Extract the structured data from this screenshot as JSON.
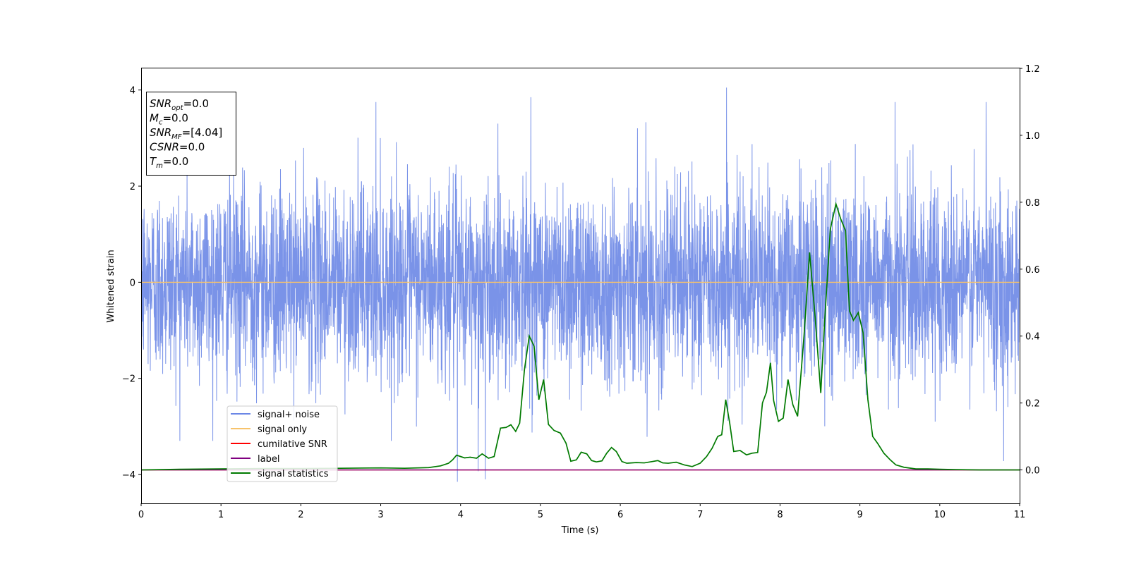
{
  "chart_data": {
    "type": "line",
    "title": "",
    "xlabel": "Time (s)",
    "ylabel": "Whitened strain",
    "ylabel_right": "",
    "xlim": [
      0,
      11
    ],
    "ylim": [
      -4.6,
      4.45
    ],
    "ylim_right": [
      -0.1,
      1.2
    ],
    "x_ticks": [
      "0",
      "1",
      "2",
      "3",
      "4",
      "5",
      "6",
      "7",
      "8",
      "9",
      "10",
      "11"
    ],
    "y_ticks": [
      "−4",
      "−2",
      "0",
      "2",
      "4"
    ],
    "y_ticks_right": [
      "0.0",
      "0.2",
      "0.4",
      "0.6",
      "0.8",
      "1.0",
      "1.2"
    ],
    "grid": false,
    "legend_position": "lower-left",
    "legend": [
      {
        "label": "signal+ noise",
        "color": "#6b87e6"
      },
      {
        "label": "signal only",
        "color": "#f7c36b"
      },
      {
        "label": "cumilative SNR",
        "color": "#ff0000"
      },
      {
        "label": "label",
        "color": "#800080"
      },
      {
        "label": "signal statistics",
        "color": "#007a00"
      }
    ],
    "info_box": [
      {
        "main": "SNR",
        "sub": "opt",
        "value": "=0.0"
      },
      {
        "main": "M",
        "sub": "c",
        "value": "=0.0"
      },
      {
        "main": "SNR",
        "sub": "MF",
        "value": "=[4.04]"
      },
      {
        "main": "CSNR",
        "sub": "",
        "value": "=0.0"
      },
      {
        "main": "T",
        "sub": "m",
        "value": "=0.0"
      }
    ],
    "series": [
      {
        "name": "signal+ noise",
        "axis": "left",
        "color": "#6b87e6",
        "description_type": "noise",
        "sample_rate": 400,
        "duration": 11,
        "std": 1.0,
        "peaks": [
          [
            4.88,
            3.85
          ],
          [
            7.33,
            4.05
          ],
          [
            2.94,
            3.75
          ],
          [
            6.32,
            3.33
          ],
          [
            3.96,
            -4.15
          ],
          [
            4.31,
            -4.1
          ],
          [
            4.22,
            -3.93
          ],
          [
            10.8,
            -3.72
          ],
          [
            9.44,
            3.75
          ],
          [
            10.58,
            3.75
          ]
        ]
      },
      {
        "name": "signal only",
        "axis": "left",
        "color": "#f7c36b",
        "x": [
          0,
          11
        ],
        "y": [
          0,
          0
        ]
      },
      {
        "name": "cumilative SNR",
        "axis": "right",
        "color": "#ff0000",
        "x": [
          0,
          11
        ],
        "y": [
          0,
          0
        ]
      },
      {
        "name": "label",
        "axis": "right",
        "color": "#800080",
        "x": [
          0,
          11
        ],
        "y": [
          0,
          0
        ]
      },
      {
        "name": "signal statistics",
        "axis": "right",
        "color": "#007a00",
        "x": [
          0,
          0.5,
          1.0,
          1.5,
          2.0,
          2.5,
          3.0,
          3.3,
          3.6,
          3.75,
          3.85,
          3.9,
          3.95,
          4.05,
          4.12,
          4.2,
          4.27,
          4.35,
          4.42,
          4.5,
          4.57,
          4.63,
          4.69,
          4.74,
          4.8,
          4.86,
          4.92,
          4.98,
          5.04,
          5.1,
          5.17,
          5.25,
          5.32,
          5.38,
          5.45,
          5.51,
          5.58,
          5.64,
          5.7,
          5.77,
          5.83,
          5.89,
          5.95,
          6.02,
          6.08,
          6.2,
          6.3,
          6.4,
          6.47,
          6.53,
          6.6,
          6.7,
          6.8,
          6.9,
          7.0,
          7.08,
          7.15,
          7.22,
          7.27,
          7.32,
          7.37,
          7.42,
          7.5,
          7.58,
          7.65,
          7.72,
          7.78,
          7.83,
          7.88,
          7.92,
          7.98,
          8.04,
          8.1,
          8.16,
          8.22,
          8.3,
          8.37,
          8.44,
          8.51,
          8.56,
          8.63,
          8.7,
          8.76,
          8.82,
          8.87,
          8.92,
          8.98,
          9.04,
          9.1,
          9.16,
          9.22,
          9.3,
          9.38,
          9.45,
          9.55,
          9.7,
          9.85,
          10.0,
          10.2,
          10.5,
          10.8,
          11.0
        ],
        "y": [
          0.0,
          0.002,
          0.003,
          0.004,
          0.004,
          0.005,
          0.006,
          0.005,
          0.007,
          0.012,
          0.02,
          0.03,
          0.044,
          0.036,
          0.038,
          0.035,
          0.048,
          0.035,
          0.04,
          0.125,
          0.127,
          0.135,
          0.115,
          0.14,
          0.3,
          0.4,
          0.37,
          0.21,
          0.27,
          0.136,
          0.118,
          0.11,
          0.08,
          0.026,
          0.03,
          0.053,
          0.048,
          0.028,
          0.024,
          0.027,
          0.05,
          0.067,
          0.055,
          0.025,
          0.02,
          0.022,
          0.021,
          0.025,
          0.028,
          0.021,
          0.02,
          0.023,
          0.015,
          0.01,
          0.02,
          0.04,
          0.065,
          0.1,
          0.105,
          0.21,
          0.14,
          0.055,
          0.058,
          0.045,
          0.05,
          0.052,
          0.2,
          0.232,
          0.32,
          0.207,
          0.145,
          0.155,
          0.27,
          0.195,
          0.16,
          0.4,
          0.65,
          0.455,
          0.23,
          0.45,
          0.72,
          0.795,
          0.75,
          0.715,
          0.475,
          0.447,
          0.47,
          0.41,
          0.21,
          0.1,
          0.08,
          0.05,
          0.03,
          0.015,
          0.008,
          0.003,
          0.003,
          0.002,
          0.001,
          0.0,
          0.0,
          0.0
        ]
      }
    ]
  }
}
